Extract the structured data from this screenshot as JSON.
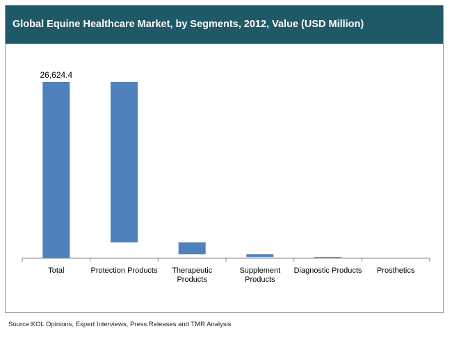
{
  "header": {
    "title": "Global Equine Healthcare Market, by Segments, 2012, Value (USD Million)"
  },
  "footer": {
    "source": "Source:KOL Opinions,  Expert Interviews, Press Releases and TMR Analysis"
  },
  "colors": {
    "title_bar": "#1f5866",
    "bar": "#4f81bd",
    "axis": "#868686"
  },
  "chart_data": {
    "type": "waterfall",
    "categories": [
      [
        "Total"
      ],
      [
        "Protection Products"
      ],
      [
        "Therapeutic",
        "Products"
      ],
      [
        "Supplement",
        "Products"
      ],
      [
        "Diagnostic Products"
      ],
      [
        "Prosthetics"
      ]
    ],
    "segments": [
      {
        "start": 0,
        "end": 26624.4
      },
      {
        "start": 2380,
        "end": 26624.4
      },
      {
        "start": 600,
        "end": 2380
      },
      {
        "start": 180,
        "end": 600
      },
      {
        "start": 15,
        "end": 180
      },
      {
        "start": 0,
        "end": 15
      }
    ],
    "data_labels": [
      "26,624.4",
      "",
      "",
      "",
      "",
      ""
    ],
    "ylim": [
      0,
      26624.4
    ],
    "grid": false,
    "legend": "none"
  }
}
